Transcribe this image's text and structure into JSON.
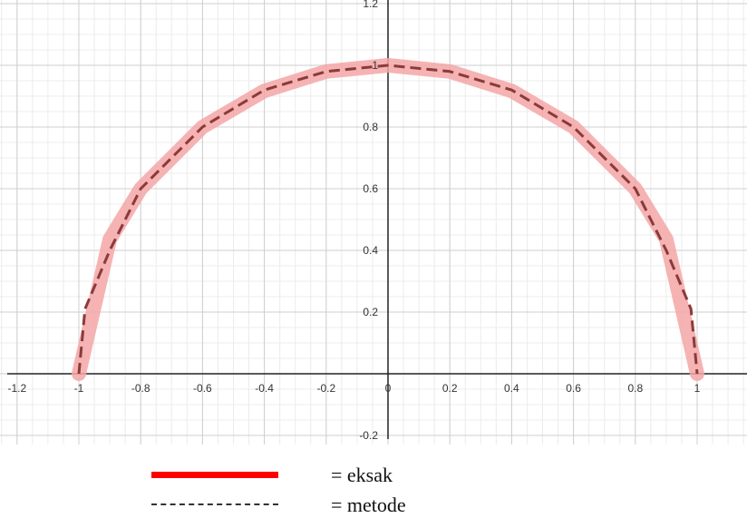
{
  "chart_data": {
    "type": "line",
    "title": "",
    "xlabel": "",
    "ylabel": "",
    "xlim": [
      -1.25,
      1.2
    ],
    "ylim": [
      -0.2,
      1.2
    ],
    "grid": true,
    "x_ticks": [
      "-1.2",
      "-1",
      "-0.8",
      "-0.6",
      "-0.4",
      "-0.2",
      "0",
      "0.2",
      "0.4",
      "0.6",
      "0.8",
      "1"
    ],
    "y_ticks": [
      "-0.2",
      "0.2",
      "0.4",
      "0.6",
      "0.8",
      "1",
      "1.2"
    ],
    "series": [
      {
        "name": "eksak",
        "style": "solid-thick",
        "x": [
          -1,
          -0.9,
          -0.8,
          -0.6,
          -0.4,
          -0.2,
          0,
          0.2,
          0.4,
          0.6,
          0.8,
          0.9,
          1
        ],
        "y": [
          0,
          0.436,
          0.6,
          0.8,
          0.917,
          0.98,
          1,
          0.98,
          0.917,
          0.8,
          0.6,
          0.436,
          0
        ]
      },
      {
        "name": "metode",
        "style": "dashed",
        "x": [
          -1,
          -0.98,
          -0.9,
          -0.8,
          -0.6,
          -0.4,
          -0.2,
          0,
          0.2,
          0.4,
          0.6,
          0.8,
          0.9,
          0.98,
          1
        ],
        "y": [
          0,
          0.21,
          0.4,
          0.6,
          0.8,
          0.92,
          0.98,
          1,
          0.98,
          0.92,
          0.8,
          0.6,
          0.4,
          0.21,
          0
        ]
      }
    ]
  },
  "legend": {
    "exact_label": "= eksak",
    "method_label": "= metode"
  },
  "colors": {
    "exact": "#f4a6a6",
    "method": "#8b3a3a",
    "legend_exact": "#ff0000"
  }
}
